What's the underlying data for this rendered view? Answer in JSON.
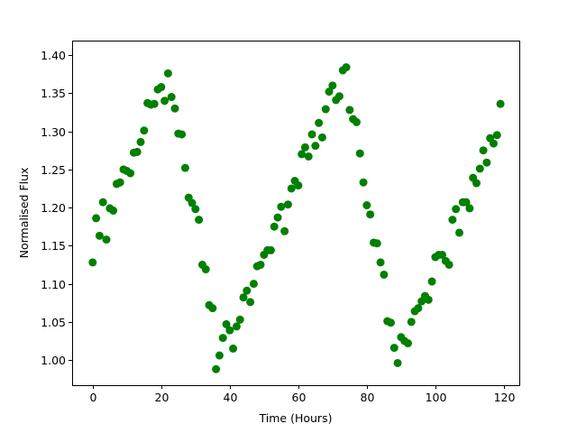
{
  "chart_data": {
    "type": "scatter",
    "title": "",
    "xlabel": "Time (Hours)",
    "ylabel": "Normalised Flux",
    "xlim": [
      -6,
      124.5
    ],
    "ylim": [
      0.967,
      1.419
    ],
    "xticks": [
      0,
      20,
      40,
      60,
      80,
      100,
      120
    ],
    "yticks": [
      1.0,
      1.05,
      1.1,
      1.15,
      1.2,
      1.25,
      1.3,
      1.35,
      1.4
    ],
    "grid": false,
    "marker_color": "#008000",
    "series": [
      {
        "x": [
          0,
          1,
          2,
          3,
          4,
          5,
          6,
          7,
          8,
          9,
          10,
          11,
          12,
          13,
          14,
          15,
          16,
          17,
          18,
          19,
          20,
          21,
          22,
          23,
          24,
          25,
          26,
          27,
          28,
          29,
          30,
          31,
          32,
          33,
          34,
          35,
          36,
          37,
          38,
          39,
          40,
          41,
          42,
          43,
          44,
          45,
          46,
          47,
          48,
          49,
          50,
          51,
          52,
          53,
          54,
          55,
          56,
          57,
          58,
          59,
          60,
          61,
          62,
          63,
          64,
          65,
          66,
          67,
          68,
          69,
          70,
          71,
          72,
          73,
          74,
          75,
          76,
          77,
          78,
          79,
          80,
          81,
          82,
          83,
          84,
          85,
          86,
          87,
          88,
          89,
          90,
          91,
          92,
          93,
          94,
          95,
          96,
          97,
          98,
          99,
          100,
          101,
          102,
          103,
          104,
          105,
          106,
          107,
          108,
          109,
          110,
          111,
          112,
          113,
          114,
          115,
          116,
          117,
          118,
          119
        ],
        "y": [
          1.128,
          1.186,
          1.163,
          1.207,
          1.158,
          1.199,
          1.196,
          1.231,
          1.233,
          1.25,
          1.248,
          1.245,
          1.272,
          1.273,
          1.286,
          1.301,
          1.337,
          1.335,
          1.336,
          1.355,
          1.358,
          1.34,
          1.376,
          1.345,
          1.33,
          1.297,
          1.296,
          1.252,
          1.213,
          1.206,
          1.198,
          1.184,
          1.125,
          1.119,
          1.072,
          1.068,
          0.988,
          1.006,
          1.029,
          1.047,
          1.039,
          1.015,
          1.044,
          1.053,
          1.082,
          1.091,
          1.076,
          1.1,
          1.123,
          1.125,
          1.138,
          1.144,
          1.144,
          1.175,
          1.187,
          1.201,
          1.169,
          1.204,
          1.225,
          1.235,
          1.229,
          1.27,
          1.279,
          1.267,
          1.296,
          1.281,
          1.311,
          1.292,
          1.329,
          1.352,
          1.36,
          1.341,
          1.346,
          1.38,
          1.384,
          1.328,
          1.316,
          1.312,
          1.271,
          1.233,
          1.203,
          1.191,
          1.154,
          1.153,
          1.128,
          1.112,
          1.051,
          1.049,
          1.016,
          0.996,
          1.03,
          1.025,
          1.022,
          1.05,
          1.064,
          1.068,
          1.077,
          1.084,
          1.079,
          1.103,
          1.135,
          1.138,
          1.138,
          1.13,
          1.125,
          1.184,
          1.198,
          1.167,
          1.207,
          1.207,
          1.199,
          1.239,
          1.232,
          1.251,
          1.275,
          1.259,
          1.291,
          1.284,
          1.295,
          1.336
        ]
      }
    ]
  }
}
